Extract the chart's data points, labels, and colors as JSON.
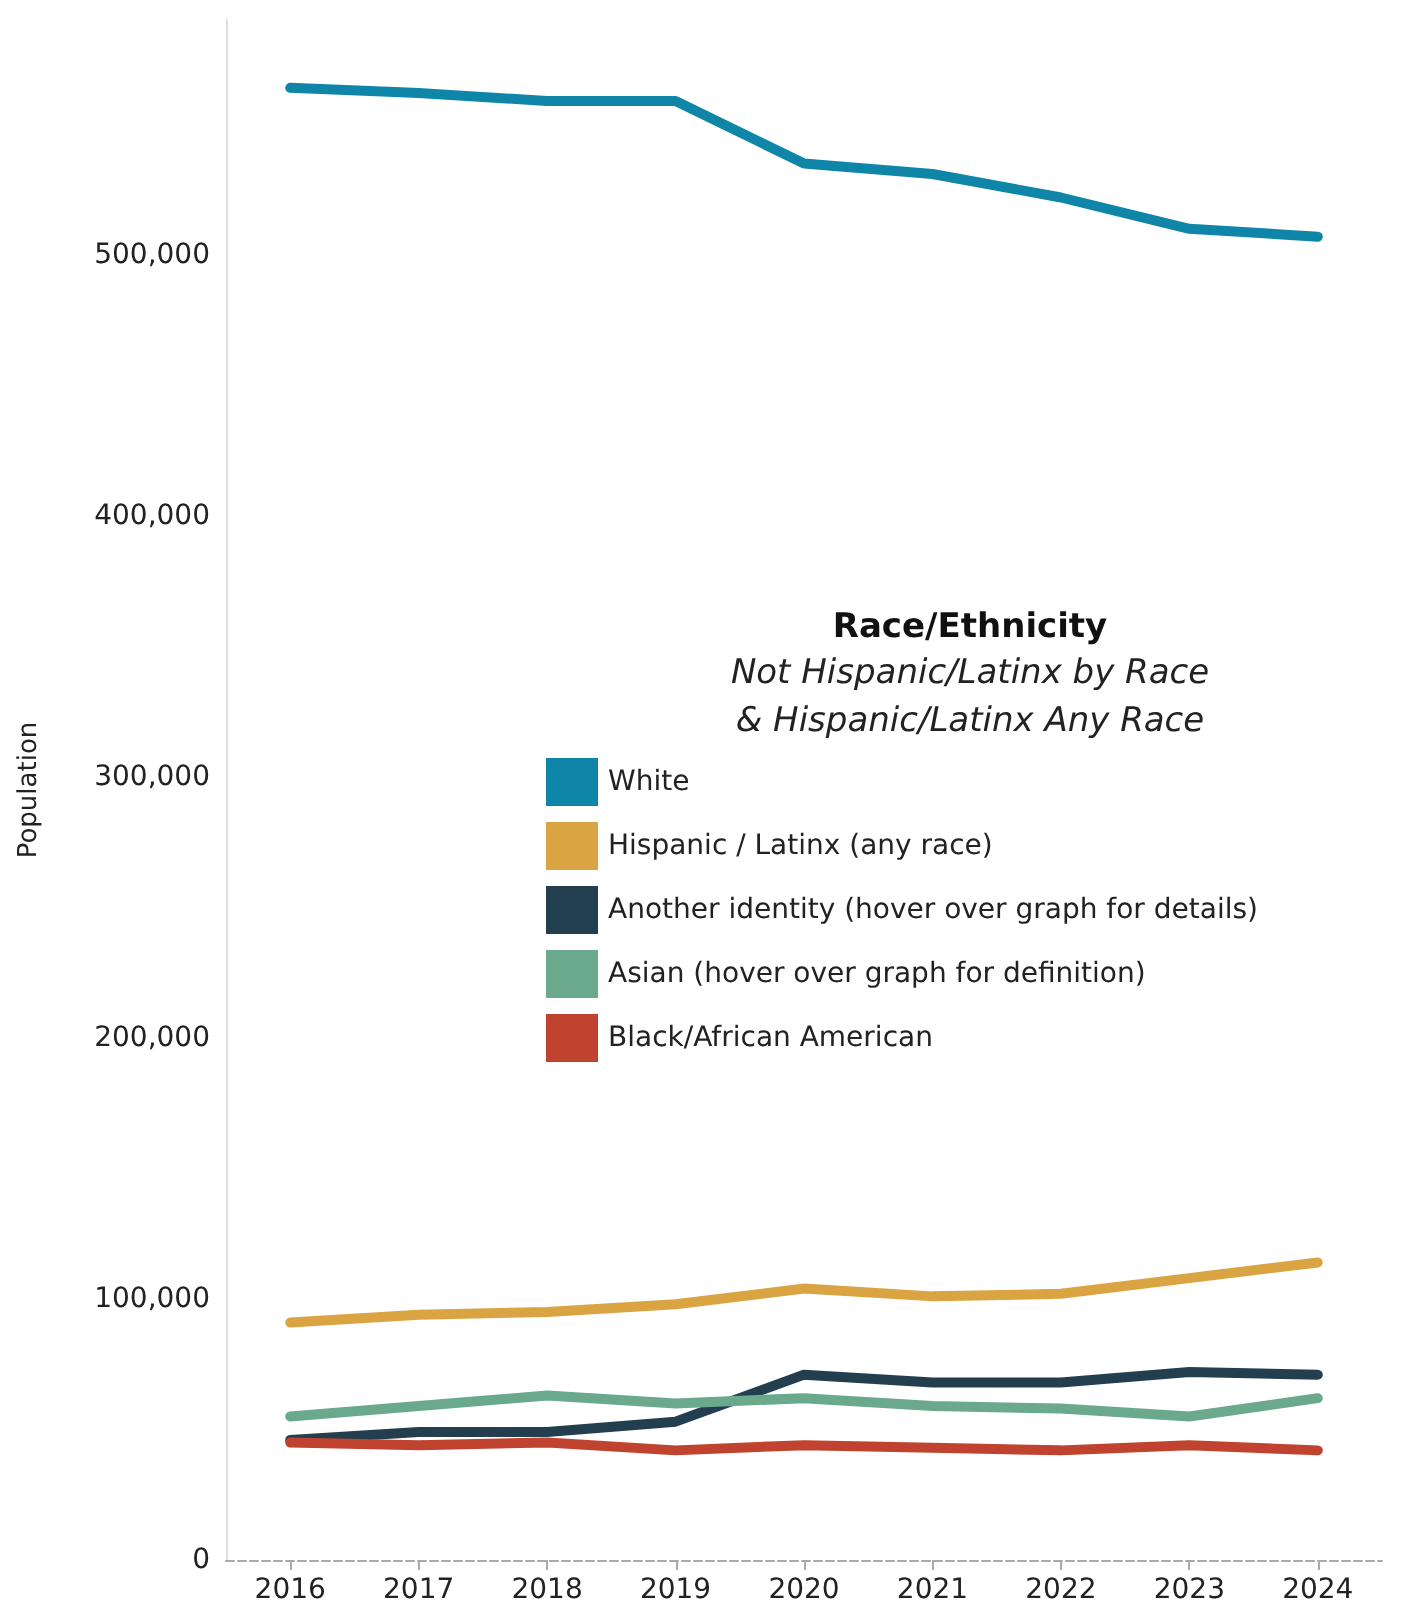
{
  "chart_data": {
    "type": "line",
    "ylabel": "Population",
    "legend_title": "Race/Ethnicity",
    "annotations": [
      "Not Hispanic/Latinx by Race",
      "& Hispanic/Latinx Any Race"
    ],
    "categories": [
      "2016",
      "2017",
      "2018",
      "2019",
      "2020",
      "2021",
      "2022",
      "2023",
      "2024"
    ],
    "series": [
      {
        "name": "White",
        "color": "#0f86a8",
        "values": [
          564000,
          562000,
          559000,
          559000,
          535000,
          531000,
          522000,
          510000,
          507000
        ]
      },
      {
        "name": "Hispanic / Latinx (any race)",
        "color": "#d9a441",
        "values": [
          91000,
          94000,
          95000,
          98000,
          104000,
          101000,
          102000,
          108000,
          114000
        ]
      },
      {
        "name": "Another identity (hover over graph for details)",
        "color": "#233f4f",
        "values": [
          46000,
          49000,
          49000,
          53000,
          71000,
          68000,
          68000,
          72000,
          71000
        ]
      },
      {
        "name": "Asian (hover over graph for definition)",
        "color": "#6aa98c",
        "values": [
          55000,
          59000,
          63000,
          60000,
          62000,
          59000,
          58000,
          55000,
          62000
        ]
      },
      {
        "name": "Black/African American",
        "color": "#c0432f",
        "values": [
          45000,
          44000,
          45000,
          42000,
          44000,
          43000,
          42000,
          44000,
          42000
        ]
      }
    ],
    "ylim": [
      0,
      590000
    ],
    "yticks": [
      0,
      {
        "value": 100000,
        "label": "100,000"
      },
      {
        "value": 200000,
        "label": "200,000"
      },
      {
        "value": 300000,
        "label": "300,000"
      },
      {
        "value": 400000,
        "label": "400,000"
      },
      {
        "value": 500000,
        "label": "500,000"
      }
    ],
    "grid": false,
    "legend": "right",
    "marker": "none",
    "line_style": "solid"
  }
}
